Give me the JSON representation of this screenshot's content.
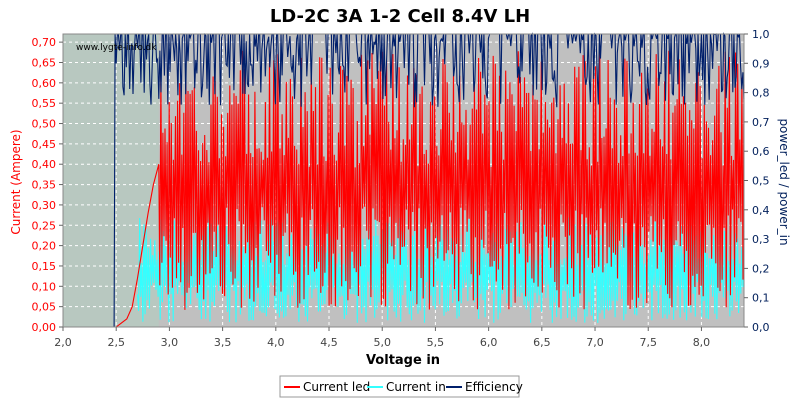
{
  "chart_data": {
    "type": "line",
    "title": "LD-2C 3A 1-2 Cell 8.4V LH",
    "watermark": "www.lygte-info.dk",
    "xlabel": "Voltage in",
    "ylabel_left": "Current (Ampere)",
    "ylabel_right": "power_led / power_in",
    "xlim": [
      2.0,
      8.4
    ],
    "ylim_left": [
      0.0,
      0.72
    ],
    "ylim_right": [
      0.0,
      1.0
    ],
    "x_ticks": [
      "2,0",
      "2,5",
      "3,0",
      "3,5",
      "4,0",
      "4,5",
      "5,0",
      "5,5",
      "6,0",
      "6,5",
      "7,0",
      "7,5",
      "8,0"
    ],
    "y_ticks_left": [
      "0,00",
      "0,05",
      "0,10",
      "0,15",
      "0,20",
      "0,25",
      "0,30",
      "0,35",
      "0,40",
      "0,45",
      "0,50",
      "0,55",
      "0,60",
      "0,65",
      "0,70"
    ],
    "y_ticks_right": [
      "0,0",
      "0,1",
      "0,2",
      "0,3",
      "0,4",
      "0,5",
      "0,6",
      "0,7",
      "0,8",
      "0,9",
      "1,0"
    ],
    "grid": true,
    "legend_position": "bottom",
    "colors": {
      "current_led": "#ff0000",
      "current_in": "#33ffff",
      "efficiency": "#001f6b",
      "plot_bg": "#c0c0c0",
      "shade_bg": "#b8c8c0"
    },
    "shade_x_max": 2.9,
    "series": [
      {
        "name": "Current led",
        "axis": "left",
        "x": [
          2.0,
          2.5,
          2.55,
          2.6,
          2.65,
          2.7,
          2.75,
          2.8,
          2.85,
          2.9,
          3.0,
          3.5,
          4.0,
          4.5,
          5.0,
          5.5,
          6.0,
          6.5,
          7.0,
          7.5,
          8.0,
          8.4
        ],
        "y": [
          0.0,
          0.0,
          0.01,
          0.02,
          0.05,
          0.12,
          0.2,
          0.28,
          0.35,
          0.4,
          0.4,
          0.4,
          0.4,
          0.4,
          0.4,
          0.4,
          0.4,
          0.4,
          0.4,
          0.4,
          0.4,
          0.4
        ],
        "noise_range_y": [
          0.04,
          0.68
        ],
        "noise_from_x": 2.9
      },
      {
        "name": "Current in",
        "axis": "left",
        "x": [
          2.7,
          2.9,
          3.0,
          3.5,
          4.0,
          4.5,
          5.0,
          5.5,
          6.0,
          6.5,
          7.0,
          7.5,
          8.0,
          8.4
        ],
        "y": [
          0.08,
          0.12,
          0.14,
          0.15,
          0.15,
          0.15,
          0.15,
          0.15,
          0.15,
          0.15,
          0.15,
          0.15,
          0.15,
          0.15
        ],
        "noise_range_y": [
          0.01,
          0.27
        ],
        "noise_from_x": 2.7
      },
      {
        "name": "Efficiency",
        "axis": "right",
        "x": [
          2.48,
          2.49,
          2.5,
          2.7,
          2.9,
          3.5,
          4.0,
          5.0,
          6.0,
          7.0,
          8.0,
          8.4
        ],
        "y": [
          0.0,
          1.0,
          0.9,
          0.85,
          0.9,
          0.95,
          0.95,
          0.95,
          0.95,
          0.95,
          0.95,
          0.95
        ],
        "noise_range_y": [
          0.75,
          1.0
        ],
        "noise_from_x": 2.5
      }
    ]
  }
}
